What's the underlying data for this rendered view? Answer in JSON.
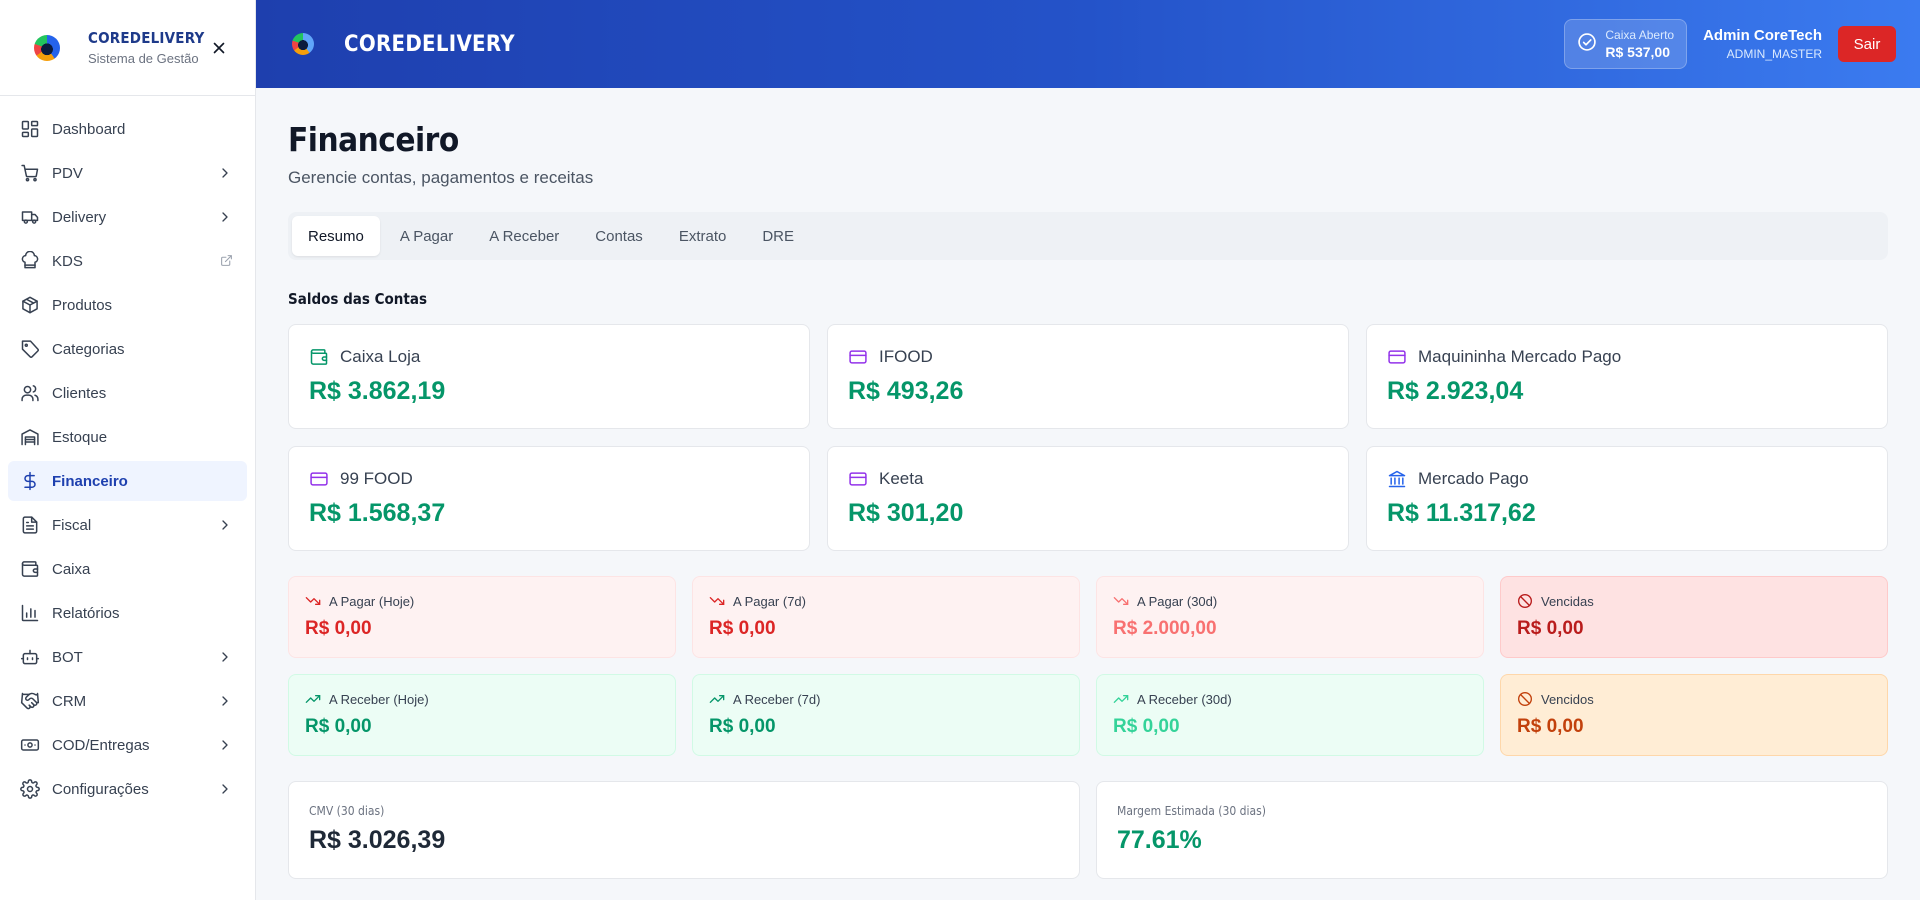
{
  "sidebar": {
    "brand_name": "COREDELIVERY",
    "brand_sub": "Sistema de Gestão",
    "items": [
      {
        "label": "Dashboard",
        "icon": "dashboard-icon"
      },
      {
        "label": "PDV",
        "icon": "cart-icon",
        "has_submenu": true
      },
      {
        "label": "Delivery",
        "icon": "truck-icon",
        "has_submenu": true
      },
      {
        "label": "KDS",
        "icon": "chef-hat-icon",
        "external": true
      },
      {
        "label": "Produtos",
        "icon": "package-icon"
      },
      {
        "label": "Categorias",
        "icon": "tag-icon"
      },
      {
        "label": "Clientes",
        "icon": "users-icon"
      },
      {
        "label": "Estoque",
        "icon": "warehouse-icon"
      },
      {
        "label": "Financeiro",
        "icon": "dollar-icon",
        "active": true
      },
      {
        "label": "Fiscal",
        "icon": "file-text-icon",
        "has_submenu": true
      },
      {
        "label": "Caixa",
        "icon": "wallet-icon"
      },
      {
        "label": "Relatórios",
        "icon": "bar-chart-icon"
      },
      {
        "label": "BOT",
        "icon": "bot-icon",
        "has_submenu": true
      },
      {
        "label": "CRM",
        "icon": "handshake-icon",
        "has_submenu": true
      },
      {
        "label": "COD/Entregas",
        "icon": "banknote-icon",
        "has_submenu": true
      },
      {
        "label": "Configurações",
        "icon": "gear-icon",
        "has_submenu": true
      }
    ]
  },
  "header": {
    "title": "COREDELIVERY",
    "cash_status_label": "Caixa Aberto",
    "cash_status_value": "R$ 537,00",
    "user_name": "Admin CoreTech",
    "user_role": "ADMIN_MASTER",
    "logout_label": "Sair"
  },
  "main": {
    "title": "Financeiro",
    "subtitle": "Gerencie contas, pagamentos e receitas",
    "tabs": [
      {
        "label": "Resumo",
        "active": true
      },
      {
        "label": "A Pagar"
      },
      {
        "label": "A Receber"
      },
      {
        "label": "Contas"
      },
      {
        "label": "Extrato"
      },
      {
        "label": "DRE"
      }
    ],
    "accounts_title": "Saldos das Contas",
    "accounts": [
      {
        "name": "Caixa Loja",
        "value": "R$ 3.862,19",
        "icon": "wallet-icon",
        "icon_color": "#059669"
      },
      {
        "name": "IFOOD",
        "value": "R$ 493,26",
        "icon": "credit-card-icon",
        "icon_color": "#9333ea"
      },
      {
        "name": "Maquininha Mercado Pago",
        "value": "R$ 2.923,04",
        "icon": "credit-card-icon",
        "icon_color": "#9333ea"
      },
      {
        "name": "99 FOOD",
        "value": "R$ 1.568,37",
        "icon": "credit-card-icon",
        "icon_color": "#9333ea"
      },
      {
        "name": "Keeta",
        "value": "R$ 301,20",
        "icon": "credit-card-icon",
        "icon_color": "#9333ea"
      },
      {
        "name": "Mercado Pago",
        "value": "R$ 11.317,62",
        "icon": "bank-icon",
        "icon_color": "#2563eb"
      }
    ],
    "payables": [
      {
        "label": "A Pagar (Hoje)",
        "value": "R$ 0,00",
        "icon": "trending-down-icon",
        "style": "s-red"
      },
      {
        "label": "A Pagar (7d)",
        "value": "R$ 0,00",
        "icon": "trending-down-icon",
        "style": "s-red"
      },
      {
        "label": "A Pagar (30d)",
        "value": "R$ 2.000,00",
        "icon": "trending-down-icon",
        "style": "s-red s-red-faded"
      },
      {
        "label": "Vencidas",
        "value": "R$ 0,00",
        "icon": "ban-icon",
        "style": "s-red-strong"
      }
    ],
    "receivables": [
      {
        "label": "A Receber (Hoje)",
        "value": "R$ 0,00",
        "icon": "trending-up-icon",
        "style": "s-green"
      },
      {
        "label": "A Receber (7d)",
        "value": "R$ 0,00",
        "icon": "trending-up-icon",
        "style": "s-green"
      },
      {
        "label": "A Receber (30d)",
        "value": "R$ 0,00",
        "icon": "trending-up-icon",
        "style": "s-green s-green-faded"
      },
      {
        "label": "Vencidos",
        "value": "R$ 0,00",
        "icon": "ban-icon",
        "style": "s-orange"
      }
    ],
    "cmv": {
      "label": "CMV (30 dias)",
      "value": "R$ 3.026,39"
    },
    "margin": {
      "label": "Margem Estimada (30 dias)",
      "value": "77.61%"
    }
  },
  "colors": {
    "accent": "#1e40af",
    "positive": "#059669",
    "negative": "#dc2626",
    "warning": "#c2410c"
  }
}
